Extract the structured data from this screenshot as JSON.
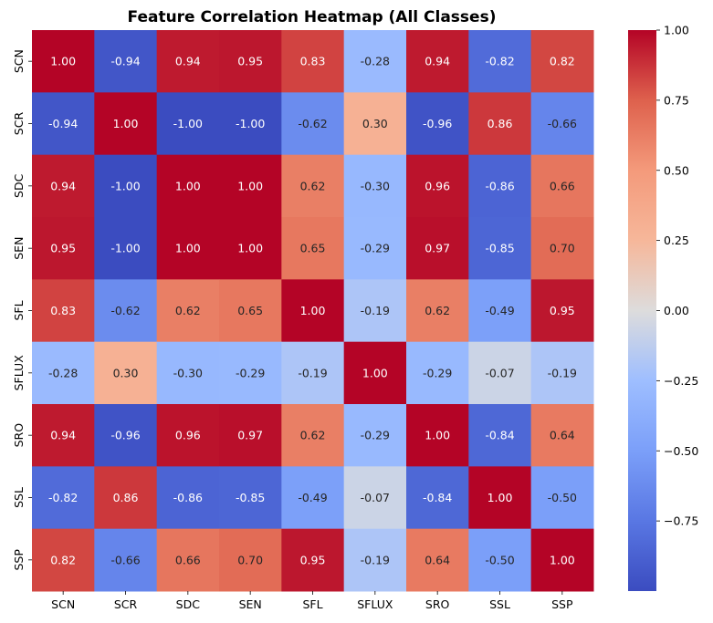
{
  "chart_data": {
    "type": "heatmap",
    "title": "Feature Correlation Heatmap (All Classes)",
    "xlabel": "",
    "ylabel": "",
    "x_categories": [
      "SCN",
      "SCR",
      "SDC",
      "SEN",
      "SFL",
      "SFLUX",
      "SRO",
      "SSL",
      "SSP"
    ],
    "y_categories": [
      "SCN",
      "SCR",
      "SDC",
      "SEN",
      "SFL",
      "SFLUX",
      "SRO",
      "SSL",
      "SSP"
    ],
    "values": [
      [
        1.0,
        -0.94,
        0.94,
        0.95,
        0.83,
        -0.28,
        0.94,
        -0.82,
        0.82
      ],
      [
        -0.94,
        1.0,
        -1.0,
        -1.0,
        -0.62,
        0.3,
        -0.96,
        0.86,
        -0.66
      ],
      [
        0.94,
        -1.0,
        1.0,
        1.0,
        0.62,
        -0.3,
        0.96,
        -0.86,
        0.66
      ],
      [
        0.95,
        -1.0,
        1.0,
        1.0,
        0.65,
        -0.29,
        0.97,
        -0.85,
        0.7
      ],
      [
        0.83,
        -0.62,
        0.62,
        0.65,
        1.0,
        -0.19,
        0.62,
        -0.49,
        0.95
      ],
      [
        -0.28,
        0.3,
        -0.3,
        -0.29,
        -0.19,
        1.0,
        -0.29,
        -0.07,
        -0.19
      ],
      [
        0.94,
        -0.96,
        0.96,
        0.97,
        0.62,
        -0.29,
        1.0,
        -0.84,
        0.64
      ],
      [
        -0.82,
        0.86,
        -0.86,
        -0.85,
        -0.49,
        -0.07,
        -0.84,
        1.0,
        -0.5
      ],
      [
        0.82,
        -0.66,
        0.66,
        0.7,
        0.95,
        -0.19,
        0.64,
        -0.5,
        1.0
      ]
    ],
    "value_format": "0.00",
    "annotated": true,
    "colormap": "coolwarm",
    "vmin": -1.0,
    "vmax": 1.0,
    "colorbar": {
      "ticks": [
        1.0,
        0.75,
        0.5,
        0.25,
        0.0,
        -0.25,
        -0.5,
        -0.75
      ],
      "tick_labels": [
        "1.00",
        "0.75",
        "0.50",
        "0.25",
        "0.00",
        "−0.25",
        "−0.50",
        "−0.75"
      ]
    },
    "grid": false,
    "legend": "colorbar-right"
  }
}
